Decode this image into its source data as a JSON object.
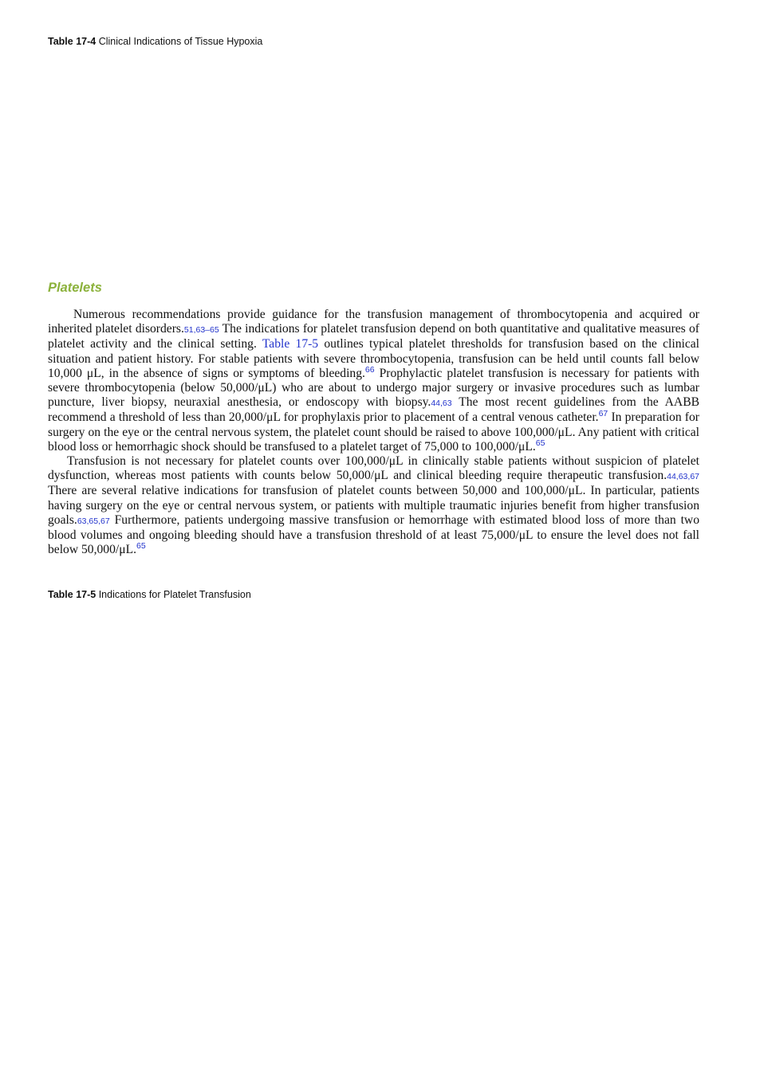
{
  "caption_1": {
    "label": "Table 17-4",
    "title": "Clinical Indications of Tissue Hypoxia"
  },
  "section_heading": "Platelets",
  "paragraphs": [
    [
      {
        "kind": "text",
        "text": "Numerous recommendations provide guidance for the transfusion management of thrombocytopenia and acquired or inherited platelet disorders."
      },
      {
        "kind": "ref",
        "text": "51,63–65"
      },
      {
        "kind": "text",
        "text": " The indications for platelet transfusion depend on both quantitative and qualitative measures of platelet activity and the clinical setting. "
      },
      {
        "kind": "link",
        "text": "Table 17-5"
      },
      {
        "kind": "text",
        "text": " outlines typical platelet thresholds for transfusion based on the clinical situation and patient history. For stable patients with severe thrombocytopenia, transfusion can be held until counts fall below 10,000 μL, in the absence of signs or symptoms of bleeding."
      },
      {
        "kind": "sup",
        "text": "66"
      },
      {
        "kind": "text",
        "text": " Prophylactic platelet transfusion is necessary for patients with severe thrombocytopenia (below 50,000/μL) who are about to undergo major surgery or invasive procedures such as lumbar puncture, liver biopsy, neuraxial anesthesia, or endoscopy with biopsy."
      },
      {
        "kind": "ref",
        "text": "44,63"
      },
      {
        "kind": "text",
        "text": " The most recent guidelines from the AABB recommend a threshold of less than 20,000/μL for prophylaxis prior to placement of a central venous catheter."
      },
      {
        "kind": "sup",
        "text": "67"
      },
      {
        "kind": "text",
        "text": " In preparation for surgery on the eye or the central nervous system, the platelet count should be raised to above 100,000/μL. Any patient with critical blood loss or hemorrhagic shock should be transfused to a platelet target of 75,000 to 100,000/μL."
      },
      {
        "kind": "sup",
        "text": "65"
      }
    ],
    [
      {
        "kind": "text",
        "text": "Transfusion is not necessary for platelet counts over 100,000/μL in clinically stable patients without suspicion of platelet dysfunction, whereas most patients with counts below 50,000/μL and clinical bleeding require therapeutic transfusion."
      },
      {
        "kind": "ref",
        "text": "44,63,67"
      },
      {
        "kind": "text",
        "text": " There are several relative indications for transfusion of platelet counts between 50,000 and 100,000/μL. In particular, patients having surgery on the eye or central nervous system, or patients with multiple traumatic injuries benefit from higher transfusion goals."
      },
      {
        "kind": "ref",
        "text": "63,65,67"
      },
      {
        "kind": "text",
        "text": " Furthermore, patients undergoing massive transfusion or hemorrhage with estimated blood loss of more than two blood volumes and ongoing bleeding should have a transfusion threshold of at least 75,000/μL to ensure the level does not fall below 50,000/μL."
      },
      {
        "kind": "sup",
        "text": "65"
      }
    ]
  ],
  "caption_2": {
    "label": "Table 17-5",
    "title": "Indications for Platelet Transfusion"
  }
}
